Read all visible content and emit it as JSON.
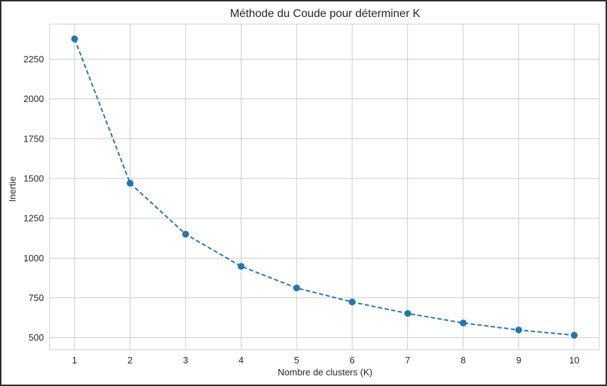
{
  "chart_data": {
    "type": "line",
    "title": "Méthode du Coude pour déterminer K",
    "xlabel": "Nombre de clusters (K)",
    "ylabel": "Inertie",
    "x": [
      1,
      2,
      3,
      4,
      5,
      6,
      7,
      8,
      9,
      10
    ],
    "series": [
      {
        "values": [
          2377,
          1470,
          1150,
          948,
          812,
          724,
          652,
          592,
          548,
          515
        ],
        "color": "#1f77b4",
        "line_style": "dashed",
        "marker": "circle"
      }
    ],
    "xticks": [
      "1",
      "2",
      "3",
      "4",
      "5",
      "6",
      "7",
      "8",
      "9",
      "10"
    ],
    "yticks": [
      "500",
      "750",
      "1000",
      "1250",
      "1500",
      "1750",
      "2000",
      "2250"
    ],
    "xlim": [
      0.55,
      10.45
    ],
    "ylim": [
      423,
      2470
    ],
    "grid": true,
    "colors": {
      "grid": "#cccccc",
      "spine": "#cccccc",
      "text": "#262626",
      "frame": "#2b2b2b"
    }
  }
}
